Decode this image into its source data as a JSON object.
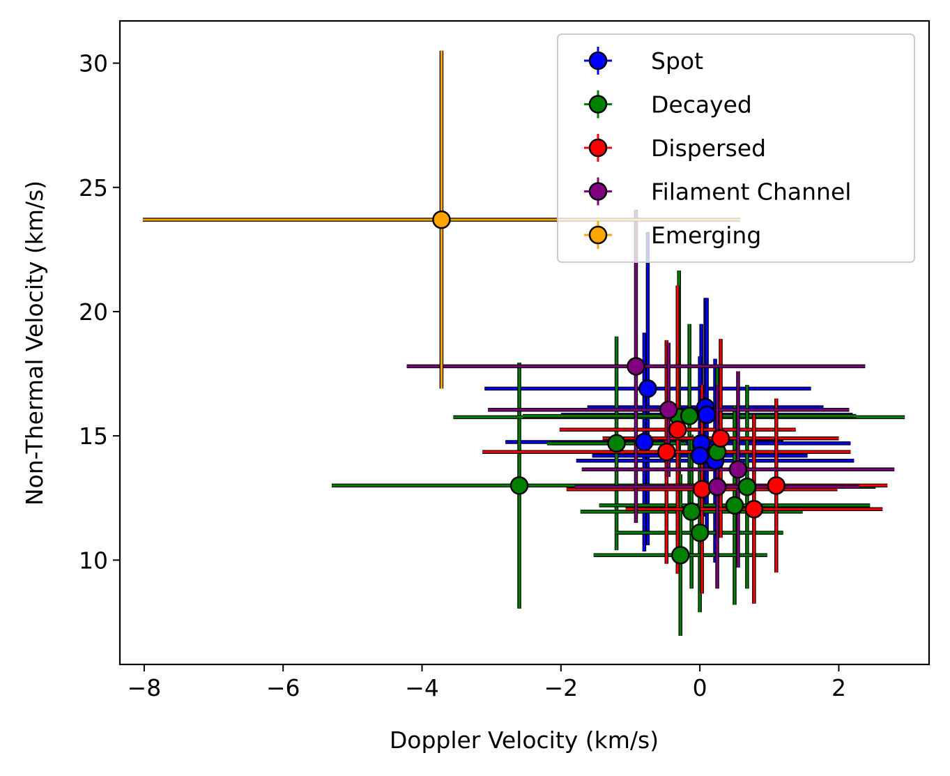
{
  "chart_data": {
    "type": "scatter",
    "title": "",
    "xlabel": "Doppler Velocity (km/s)",
    "ylabel": "Non-Thermal Velocity (km/s)",
    "xlim": [
      -8.35,
      3.3
    ],
    "ylim": [
      5.8,
      31.7
    ],
    "xticks": [
      -8,
      -6,
      -4,
      -2,
      0,
      2
    ],
    "xtick_labels": [
      "−8",
      "−6",
      "−4",
      "−2",
      "0",
      "2"
    ],
    "yticks": [
      10,
      15,
      20,
      25,
      30
    ],
    "ytick_labels": [
      "10",
      "15",
      "20",
      "25",
      "30"
    ],
    "grid": false,
    "legend_position": "top-right",
    "series": [
      {
        "name": "Spot",
        "color": "#0000ff",
        "points": [
          {
            "x": -0.75,
            "y": 16.9,
            "xerr": 2.35,
            "yerr": 6.3
          },
          {
            "x": 0.08,
            "y": 16.15,
            "xerr": 1.7,
            "yerr": 4.4
          },
          {
            "x": 0.1,
            "y": 15.85,
            "xerr": 2.1,
            "yerr": 4.7
          },
          {
            "x": -0.8,
            "y": 14.75,
            "xerr": 2.0,
            "yerr": 4.4
          },
          {
            "x": 0.02,
            "y": 14.7,
            "xerr": 2.15,
            "yerr": 4.8
          },
          {
            "x": 0.22,
            "y": 14.0,
            "xerr": 2.0,
            "yerr": 4.1
          },
          {
            "x": 0.0,
            "y": 14.2,
            "xerr": 1.55,
            "yerr": 4.0
          }
        ]
      },
      {
        "name": "Decayed",
        "color": "#008000",
        "points": [
          {
            "x": -2.6,
            "y": 13.0,
            "xerr": 2.7,
            "yerr": 4.95
          },
          {
            "x": -1.2,
            "y": 14.7,
            "xerr": 1.0,
            "yerr": 4.3
          },
          {
            "x": -0.3,
            "y": 15.75,
            "xerr": 3.25,
            "yerr": 5.9
          },
          {
            "x": -0.15,
            "y": 15.8,
            "xerr": 2.4,
            "yerr": 3.7
          },
          {
            "x": 0.25,
            "y": 14.35,
            "xerr": 1.8,
            "yerr": 3.4
          },
          {
            "x": 0.68,
            "y": 12.95,
            "xerr": 1.85,
            "yerr": 4.1
          },
          {
            "x": 0.5,
            "y": 12.2,
            "xerr": 1.95,
            "yerr": 4.0
          },
          {
            "x": -0.12,
            "y": 11.95,
            "xerr": 1.6,
            "yerr": 3.1
          },
          {
            "x": 0.0,
            "y": 11.1,
            "xerr": 1.2,
            "yerr": 3.2
          },
          {
            "x": -0.28,
            "y": 10.2,
            "xerr": 1.25,
            "yerr": 3.25
          }
        ]
      },
      {
        "name": "Dispersed",
        "color": "#ff0000",
        "points": [
          {
            "x": -0.32,
            "y": 15.25,
            "xerr": 1.7,
            "yerr": 5.8
          },
          {
            "x": -0.48,
            "y": 14.35,
            "xerr": 2.65,
            "yerr": 4.5
          },
          {
            "x": 0.3,
            "y": 14.9,
            "xerr": 1.7,
            "yerr": 4.0
          },
          {
            "x": 0.03,
            "y": 12.85,
            "xerr": 1.95,
            "yerr": 4.2
          },
          {
            "x": 1.1,
            "y": 13.0,
            "xerr": 1.6,
            "yerr": 3.5
          },
          {
            "x": 0.78,
            "y": 12.05,
            "xerr": 1.85,
            "yerr": 3.8
          }
        ]
      },
      {
        "name": "Filament Channel",
        "color": "#800080",
        "points": [
          {
            "x": -0.92,
            "y": 17.8,
            "xerr": 3.3,
            "yerr": 6.3
          },
          {
            "x": -0.45,
            "y": 16.05,
            "xerr": 2.6,
            "yerr": 2.7
          },
          {
            "x": 0.55,
            "y": 13.65,
            "xerr": 2.25,
            "yerr": 3.95
          },
          {
            "x": 0.25,
            "y": 12.95,
            "xerr": 2.05,
            "yerr": 4.1
          }
        ]
      },
      {
        "name": "Emerging",
        "color": "#ffa500",
        "points": [
          {
            "x": -3.72,
            "y": 23.7,
            "xerr": 4.3,
            "yerr": 6.8
          }
        ]
      }
    ]
  }
}
